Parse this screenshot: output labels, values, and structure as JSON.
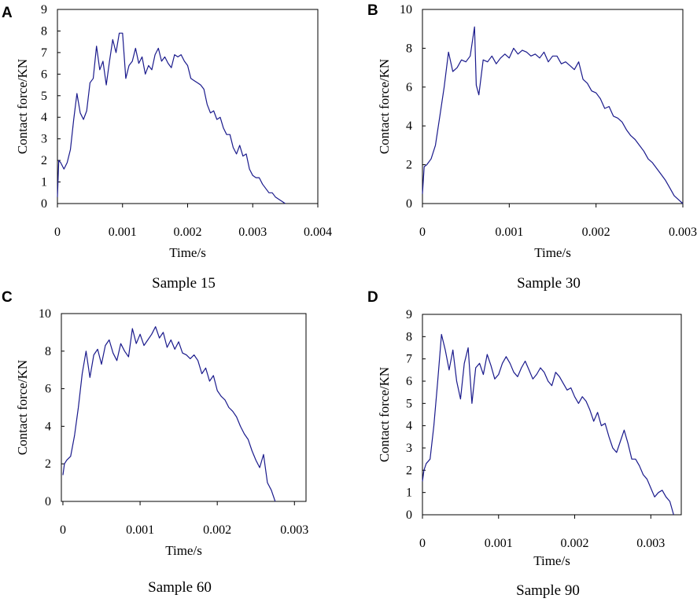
{
  "figure": {
    "series_color": "#1a1a8c"
  },
  "chart_data": [
    {
      "type": "line",
      "panel_label": "A",
      "title": "Sample 15",
      "xlabel": "Time/s",
      "ylabel": "Contact force/KN",
      "xlim": [
        0,
        0.004
      ],
      "ylim": [
        0,
        9
      ],
      "x_ticks": [
        0,
        0.001,
        0.002,
        0.003,
        0.004
      ],
      "x_tick_labels": [
        "0",
        "0.001",
        "0.002",
        "0.003",
        "0.004"
      ],
      "y_ticks": [
        0,
        1,
        2,
        3,
        4,
        5,
        6,
        7,
        8,
        9
      ],
      "y_tick_labels": [
        "0",
        "1",
        "2",
        "3",
        "4",
        "5",
        "6",
        "7",
        "8",
        "9"
      ],
      "grid": false,
      "series": [
        {
          "name": "Contact force",
          "x": [
            0,
            2e-05,
            5e-05,
            0.0001,
            0.00015,
            0.0002,
            0.00025,
            0.0003,
            0.00035,
            0.0004,
            0.00045,
            0.0005,
            0.00055,
            0.0006,
            0.00065,
            0.0007,
            0.00075,
            0.0008,
            0.00085,
            0.0009,
            0.00095,
            0.001,
            0.00105,
            0.0011,
            0.00115,
            0.0012,
            0.00125,
            0.0013,
            0.00135,
            0.0014,
            0.00145,
            0.0015,
            0.00155,
            0.0016,
            0.00165,
            0.0017,
            0.00175,
            0.0018,
            0.00185,
            0.0019,
            0.00195,
            0.002,
            0.00205,
            0.0021,
            0.00215,
            0.0022,
            0.00225,
            0.0023,
            0.00235,
            0.0024,
            0.00245,
            0.0025,
            0.00255,
            0.0026,
            0.00265,
            0.0027,
            0.00275,
            0.0028,
            0.00285,
            0.0029,
            0.00295,
            0.003,
            0.00305,
            0.0031,
            0.00315,
            0.0032,
            0.00325,
            0.0033,
            0.00335,
            0.0034,
            0.00345,
            0.0035
          ],
          "values": [
            0.3,
            2.0,
            1.9,
            1.6,
            1.9,
            2.5,
            3.9,
            5.1,
            4.2,
            3.9,
            4.3,
            5.6,
            5.8,
            7.3,
            6.2,
            6.6,
            5.5,
            6.6,
            7.6,
            7.0,
            7.9,
            7.9,
            5.8,
            6.4,
            6.6,
            7.2,
            6.5,
            6.8,
            6.0,
            6.4,
            6.2,
            6.9,
            7.2,
            6.6,
            6.8,
            6.5,
            6.3,
            6.9,
            6.8,
            6.9,
            6.6,
            6.4,
            5.8,
            5.7,
            5.6,
            5.5,
            5.3,
            4.6,
            4.2,
            4.3,
            3.9,
            4.0,
            3.5,
            3.2,
            3.2,
            2.6,
            2.3,
            2.7,
            2.2,
            2.3,
            1.6,
            1.3,
            1.2,
            1.2,
            0.9,
            0.7,
            0.5,
            0.5,
            0.3,
            0.2,
            0.1,
            0.0
          ]
        }
      ]
    },
    {
      "type": "line",
      "panel_label": "B",
      "title": "Sample 30",
      "xlabel": "Time/s",
      "ylabel": "Contact force/KN",
      "xlim": [
        0,
        0.003
      ],
      "ylim": [
        0,
        10
      ],
      "x_ticks": [
        0,
        0.001,
        0.002,
        0.003
      ],
      "x_tick_labels": [
        "0",
        "0.001",
        "0.002",
        "0.003"
      ],
      "y_ticks": [
        0,
        2,
        4,
        6,
        8,
        10
      ],
      "y_tick_labels": [
        "0",
        "2",
        "4",
        "6",
        "8",
        "10"
      ],
      "grid": false,
      "series": [
        {
          "name": "Contact force",
          "x": [
            0,
            2e-05,
            5e-05,
            0.0001,
            0.00015,
            0.0002,
            0.00025,
            0.0003,
            0.00035,
            0.0004,
            0.00045,
            0.0005,
            0.00055,
            0.0006,
            0.00062,
            0.00065,
            0.0007,
            0.00075,
            0.0008,
            0.00085,
            0.0009,
            0.00095,
            0.001,
            0.00105,
            0.0011,
            0.00115,
            0.0012,
            0.00125,
            0.0013,
            0.00135,
            0.0014,
            0.00145,
            0.0015,
            0.00155,
            0.0016,
            0.00165,
            0.0017,
            0.00175,
            0.0018,
            0.00185,
            0.0019,
            0.00195,
            0.002,
            0.00205,
            0.0021,
            0.00215,
            0.0022,
            0.00225,
            0.0023,
            0.00235,
            0.0024,
            0.00245,
            0.0025,
            0.00255,
            0.0026,
            0.00265,
            0.0027,
            0.00275,
            0.0028,
            0.00285,
            0.0029,
            0.00295,
            0.003
          ],
          "values": [
            0.5,
            1.9,
            2.0,
            2.3,
            3.0,
            4.5,
            6.0,
            7.8,
            6.8,
            7.0,
            7.4,
            7.3,
            7.6,
            9.1,
            6.1,
            5.6,
            7.4,
            7.3,
            7.6,
            7.2,
            7.5,
            7.7,
            7.5,
            8.0,
            7.7,
            7.9,
            7.8,
            7.6,
            7.7,
            7.5,
            7.8,
            7.3,
            7.6,
            7.6,
            7.2,
            7.3,
            7.1,
            6.9,
            7.3,
            6.4,
            6.2,
            5.8,
            5.7,
            5.4,
            4.9,
            5.0,
            4.5,
            4.4,
            4.2,
            3.8,
            3.5,
            3.3,
            3.0,
            2.7,
            2.3,
            2.1,
            1.8,
            1.5,
            1.2,
            0.8,
            0.4,
            0.2,
            0.0
          ]
        }
      ]
    },
    {
      "type": "line",
      "panel_label": "C",
      "title": "Sample 60",
      "xlabel": "Time/s",
      "ylabel": "Contact force/KN",
      "xlim": [
        -2e-05,
        0.00315
      ],
      "ylim": [
        0,
        10
      ],
      "x_ticks": [
        0,
        0.001,
        0.002,
        0.003
      ],
      "x_tick_labels": [
        "0",
        "0.001",
        "0.002",
        "0.003"
      ],
      "y_ticks": [
        0,
        2,
        4,
        6,
        8,
        10
      ],
      "y_tick_labels": [
        "0",
        "2",
        "4",
        "6",
        "8",
        "10"
      ],
      "grid": false,
      "series": [
        {
          "name": "Contact force",
          "x": [
            0,
            2e-05,
            5e-05,
            0.0001,
            0.00015,
            0.0002,
            0.00025,
            0.0003,
            0.00035,
            0.0004,
            0.00045,
            0.0005,
            0.00055,
            0.0006,
            0.00065,
            0.0007,
            0.00075,
            0.0008,
            0.00085,
            0.0009,
            0.00095,
            0.001,
            0.00105,
            0.0011,
            0.00115,
            0.0012,
            0.00125,
            0.0013,
            0.00135,
            0.0014,
            0.00145,
            0.0015,
            0.00155,
            0.0016,
            0.00165,
            0.0017,
            0.00175,
            0.0018,
            0.00185,
            0.0019,
            0.00195,
            0.002,
            0.00205,
            0.0021,
            0.00215,
            0.0022,
            0.00225,
            0.0023,
            0.00235,
            0.0024,
            0.00245,
            0.0025,
            0.00255,
            0.0026,
            0.00265,
            0.0027,
            0.00275
          ],
          "values": [
            1.4,
            2.0,
            2.2,
            2.4,
            3.5,
            5.0,
            6.8,
            8.0,
            6.6,
            7.8,
            8.1,
            7.3,
            8.3,
            8.6,
            7.9,
            7.5,
            8.4,
            8.0,
            7.7,
            9.2,
            8.4,
            8.9,
            8.3,
            8.6,
            8.9,
            9.3,
            8.7,
            9.0,
            8.2,
            8.6,
            8.1,
            8.5,
            7.9,
            7.8,
            7.6,
            7.8,
            7.5,
            6.8,
            7.1,
            6.4,
            6.7,
            5.9,
            5.6,
            5.4,
            5.0,
            4.8,
            4.5,
            4.0,
            3.6,
            3.3,
            2.7,
            2.2,
            1.8,
            2.5,
            1.0,
            0.6,
            0.0
          ]
        }
      ]
    },
    {
      "type": "line",
      "panel_label": "D",
      "title": "Sample 90",
      "xlabel": "Time/s",
      "ylabel": "Contact force/KN",
      "xlim": [
        0,
        0.0034
      ],
      "ylim": [
        0,
        9
      ],
      "x_ticks": [
        0,
        0.001,
        0.002,
        0.003
      ],
      "x_tick_labels": [
        "0",
        "0.001",
        "0.002",
        "0.003"
      ],
      "y_ticks": [
        0,
        1,
        2,
        3,
        4,
        5,
        6,
        7,
        8,
        9
      ],
      "y_tick_labels": [
        "0",
        "1",
        "2",
        "3",
        "4",
        "5",
        "6",
        "7",
        "8",
        "9"
      ],
      "grid": false,
      "series": [
        {
          "name": "Contact force",
          "x": [
            0,
            2e-05,
            5e-05,
            0.0001,
            0.00015,
            0.0002,
            0.00025,
            0.0003,
            0.00035,
            0.0004,
            0.00045,
            0.0005,
            0.00055,
            0.0006,
            0.00065,
            0.0007,
            0.00075,
            0.0008,
            0.00085,
            0.0009,
            0.00095,
            0.001,
            0.00105,
            0.0011,
            0.00115,
            0.0012,
            0.00125,
            0.0013,
            0.00135,
            0.0014,
            0.00145,
            0.0015,
            0.00155,
            0.0016,
            0.00165,
            0.0017,
            0.00175,
            0.0018,
            0.00185,
            0.0019,
            0.00195,
            0.002,
            0.00205,
            0.0021,
            0.00215,
            0.0022,
            0.00225,
            0.0023,
            0.00235,
            0.0024,
            0.00245,
            0.0025,
            0.00255,
            0.0026,
            0.00265,
            0.0027,
            0.00275,
            0.0028,
            0.00285,
            0.0029,
            0.00295,
            0.003,
            0.00305,
            0.0031,
            0.00315,
            0.0032,
            0.00325,
            0.0033
          ],
          "values": [
            1.5,
            2.0,
            2.3,
            2.5,
            4.0,
            6.0,
            8.1,
            7.4,
            6.5,
            7.4,
            6.0,
            5.2,
            6.8,
            7.5,
            5.0,
            6.6,
            6.8,
            6.3,
            7.2,
            6.7,
            6.1,
            6.3,
            6.8,
            7.1,
            6.8,
            6.4,
            6.2,
            6.6,
            6.9,
            6.5,
            6.1,
            6.3,
            6.6,
            6.4,
            6.0,
            5.8,
            6.4,
            6.2,
            5.9,
            5.6,
            5.7,
            5.3,
            5.0,
            5.3,
            5.1,
            4.7,
            4.2,
            4.6,
            4.0,
            4.1,
            3.5,
            3.0,
            2.8,
            3.3,
            3.8,
            3.2,
            2.5,
            2.5,
            2.2,
            1.8,
            1.6,
            1.2,
            0.8,
            1.0,
            1.1,
            0.8,
            0.6,
            0.0
          ]
        }
      ]
    }
  ]
}
